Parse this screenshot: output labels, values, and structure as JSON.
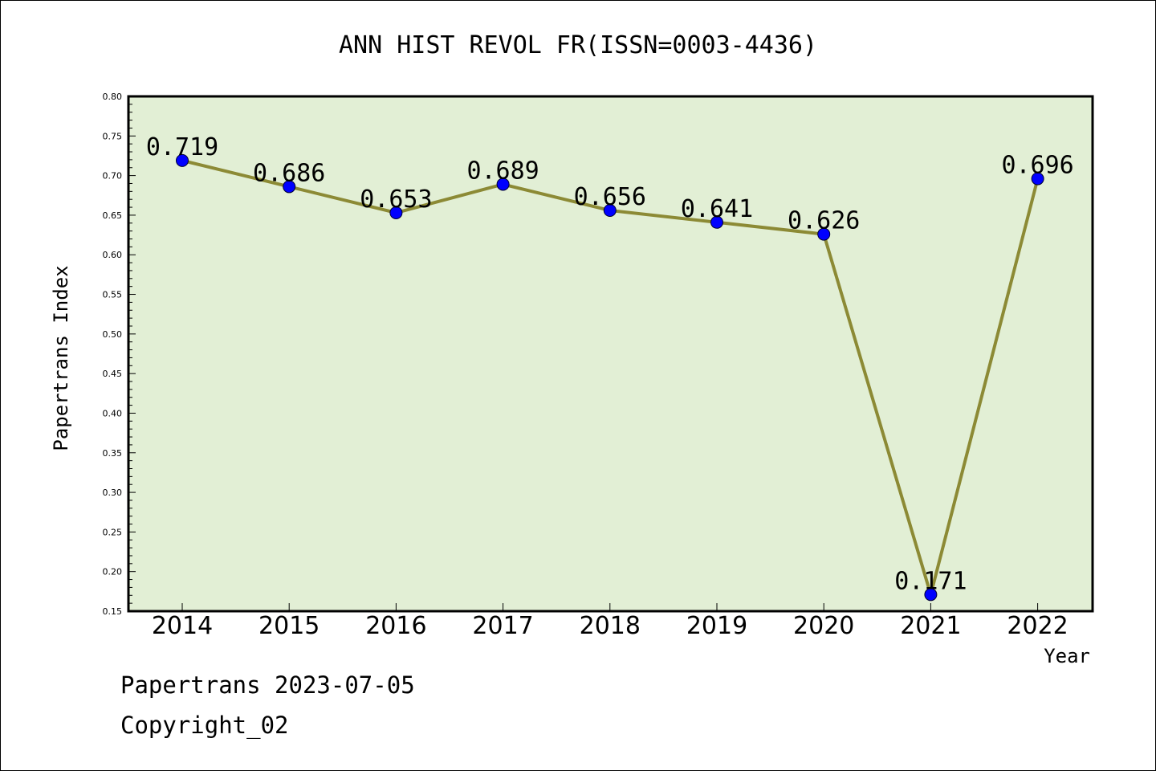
{
  "chart_data": {
    "type": "line",
    "title": "ANN HIST REVOL FR(ISSN=0003-4436)",
    "xlabel": "Year",
    "ylabel": "Papertrans Index",
    "categories": [
      "2014",
      "2015",
      "2016",
      "2017",
      "2018",
      "2019",
      "2020",
      "2021",
      "2022"
    ],
    "series": [
      {
        "values": [
          0.719,
          0.686,
          0.653,
          0.689,
          0.656,
          0.641,
          0.626,
          0.171,
          0.696
        ],
        "labels": [
          "0.719",
          "0.686",
          "0.653",
          "0.689",
          "0.656",
          "0.641",
          "0.626",
          "0.171",
          "0.696"
        ]
      }
    ],
    "ylim": [
      0.15,
      0.8
    ],
    "yticks": [
      "0.15",
      "0.20",
      "0.25",
      "0.30",
      "0.35",
      "0.40",
      "0.45",
      "0.50",
      "0.55",
      "0.60",
      "0.65",
      "0.70",
      "0.75",
      "0.80"
    ],
    "grid": false,
    "colors": {
      "plot_background": "#e2efd5",
      "line": "#8c8a35",
      "marker": "#0000ff",
      "axes": "#000000"
    }
  },
  "footer": {
    "line1": "Papertrans 2023-07-05",
    "line2": "Copyright_02"
  }
}
